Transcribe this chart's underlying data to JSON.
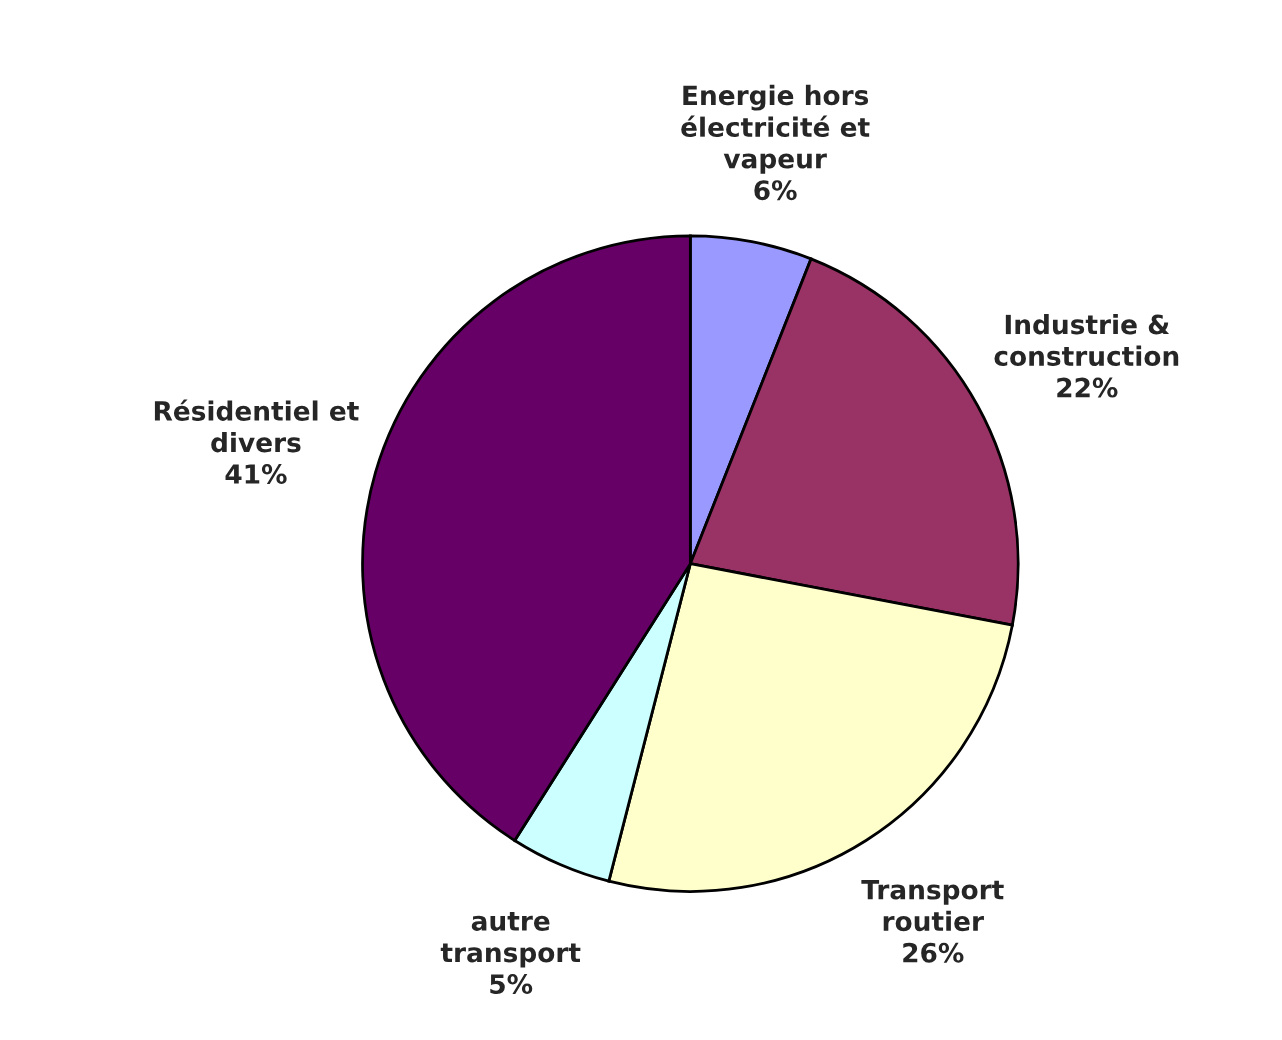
{
  "chart_data": {
    "type": "pie",
    "categories": [
      "Energie hors\nélectricité et\nvapeur",
      "Industrie &\nconstruction",
      "Transport\nroutier",
      "autre\ntransport",
      "Résidentiel et\ndivers"
    ],
    "values": [
      6,
      22,
      26,
      5,
      41
    ],
    "value_labels": [
      "6%",
      "22%",
      "26%",
      "5%",
      "41%"
    ],
    "colors": [
      "#9999ff",
      "#993366",
      "#ffffcc",
      "#ccffff",
      "#660066"
    ]
  }
}
